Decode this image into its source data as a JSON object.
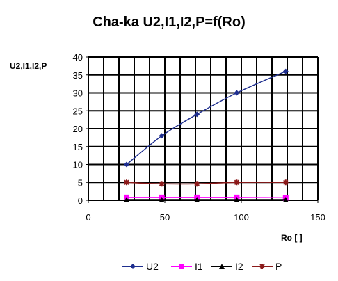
{
  "chart_data": {
    "type": "line",
    "title": "Cha-ka U2,I1,I2,P=f(Ro)",
    "xlabel": "Ro [ ]",
    "ylabel": "U2,I1,I2,P",
    "xlim": [
      0,
      150
    ],
    "ylim": [
      0,
      40
    ],
    "xticks": [
      0,
      50,
      100,
      150
    ],
    "yticks": [
      0,
      5,
      10,
      15,
      20,
      25,
      30,
      35,
      40
    ],
    "grid": true,
    "legend_position": "bottom",
    "x": [
      25,
      48,
      71,
      97,
      129
    ],
    "series": [
      {
        "name": "U2",
        "color": "#1f2f8f",
        "marker": "diamond",
        "values": [
          10,
          18,
          24,
          30,
          36
        ]
      },
      {
        "name": "I1",
        "color": "#ff00ff",
        "marker": "square",
        "values": [
          0.8,
          0.8,
          0.8,
          0.8,
          0.7
        ]
      },
      {
        "name": "I2",
        "color": "#000000",
        "marker": "triangle",
        "values": [
          0.2,
          0.2,
          0.2,
          0.2,
          0.2
        ]
      },
      {
        "name": "P",
        "color": "#8b1a1a",
        "marker": "star",
        "values": [
          5,
          4.6,
          4.6,
          5,
          5
        ]
      }
    ]
  }
}
